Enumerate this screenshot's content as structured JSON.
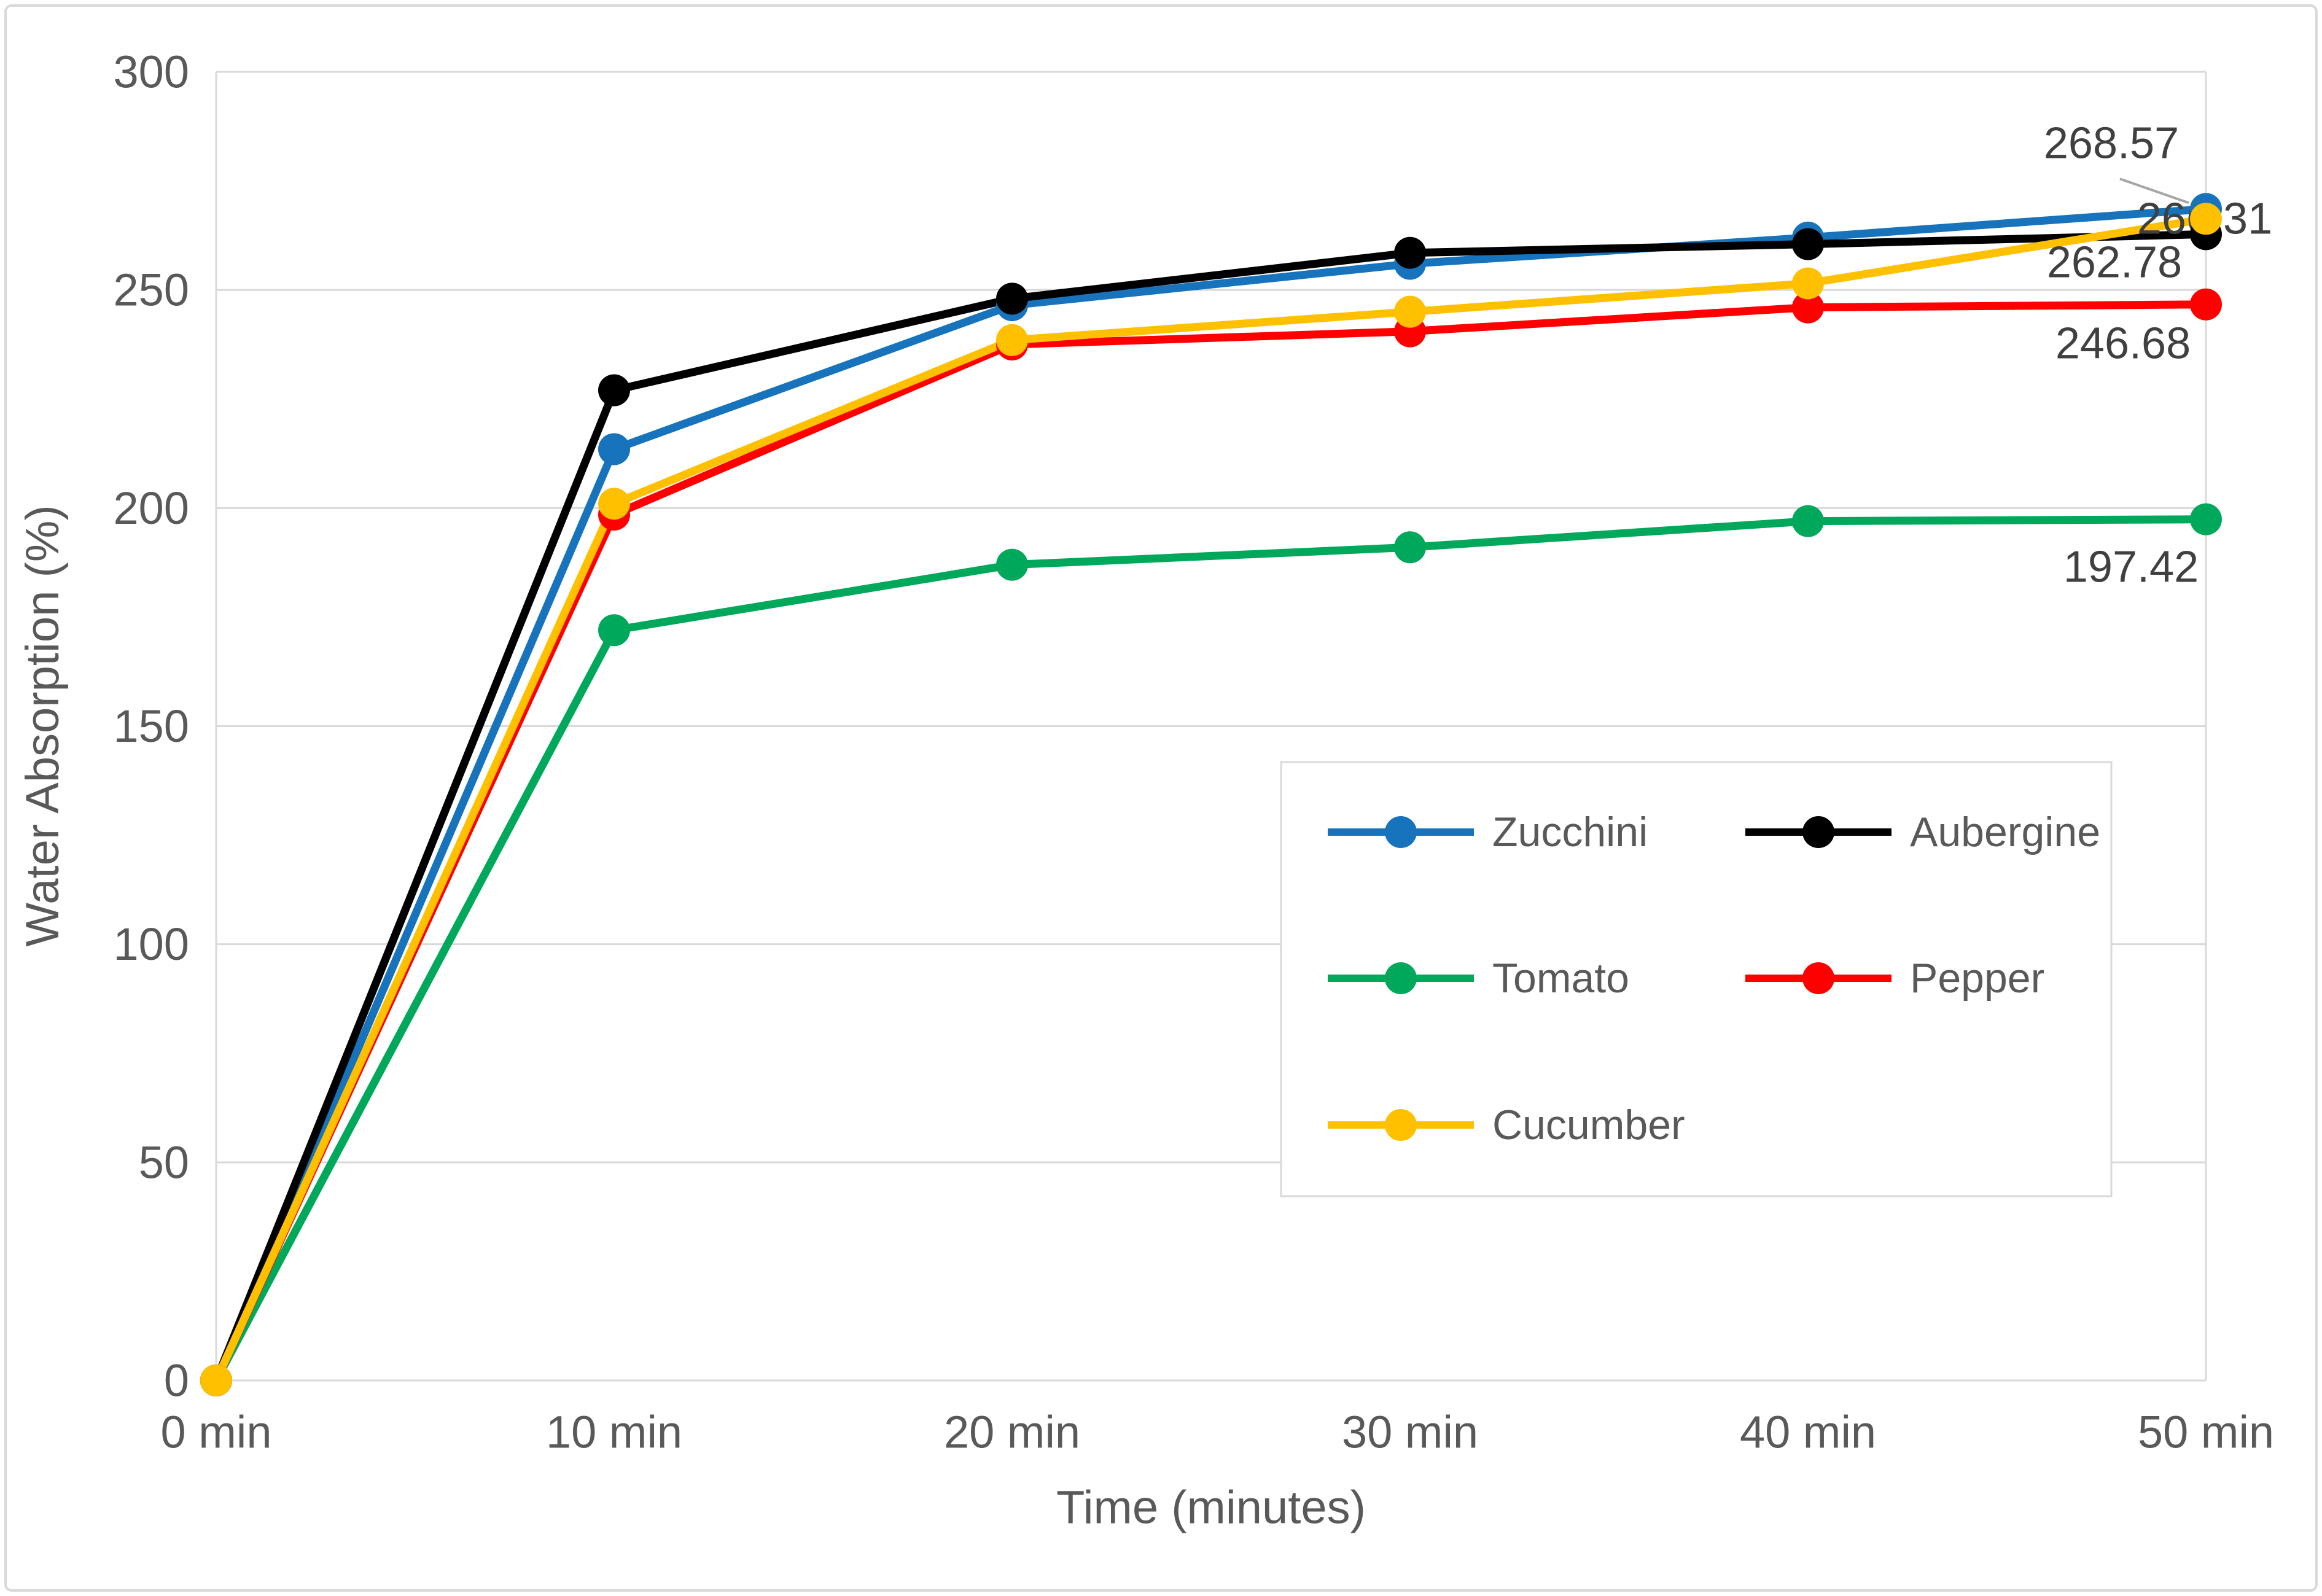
{
  "chart_data": {
    "type": "line",
    "title": "",
    "xlabel": "Time (minutes)",
    "ylabel": "Water Absorption (%)",
    "categories": [
      "0 min",
      "10 min",
      "20 min",
      "30 min",
      "40 min",
      "50 min"
    ],
    "ylim": [
      0,
      300
    ],
    "y_ticks": [
      0,
      50,
      100,
      150,
      200,
      250,
      300
    ],
    "grid": "horizontal",
    "legend_position": "inside-bottom-right",
    "marker": "circle",
    "series": [
      {
        "name": "Zucchini",
        "color": "#1673BC",
        "values": [
          0,
          213.5,
          246.5,
          256.0,
          262.0,
          268.57
        ],
        "end_label": "268.57"
      },
      {
        "name": "Aubergine",
        "color": "#000000",
        "values": [
          0,
          227.0,
          248.0,
          258.5,
          260.5,
          262.78
        ],
        "end_label": "262.78"
      },
      {
        "name": "Tomato",
        "color": "#00A85B",
        "values": [
          0,
          172.0,
          187.0,
          191.0,
          197.0,
          197.42
        ],
        "end_label": "197.42"
      },
      {
        "name": "Pepper",
        "color": "#FF0000",
        "values": [
          0,
          198.5,
          237.5,
          240.5,
          246.0,
          246.68
        ],
        "end_label": "246.68"
      },
      {
        "name": "Cucumber",
        "color": "#FFC000",
        "values": [
          0,
          201.0,
          238.5,
          245.0,
          251.5,
          266.31
        ],
        "end_label": "266.31"
      }
    ]
  },
  "styles": {
    "background": "#FFFFFF",
    "chart_border": "#D9D9D9",
    "gridline": "#D9D9D9",
    "plot_border": "#D9D9D9",
    "axis_text": "#595959",
    "data_label_text": "#404040",
    "leader_line": "#A6A6A6"
  }
}
